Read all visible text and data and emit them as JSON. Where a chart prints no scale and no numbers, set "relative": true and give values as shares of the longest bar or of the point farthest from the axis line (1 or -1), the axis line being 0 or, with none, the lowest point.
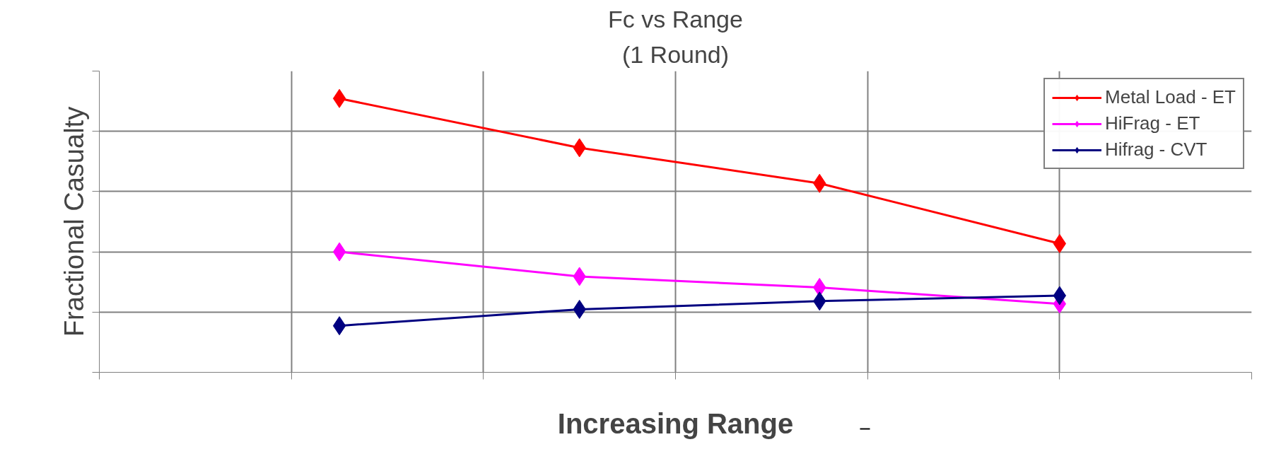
{
  "chart_data": {
    "type": "line",
    "title": "Fc vs Range",
    "subtitle": "(1 Round)",
    "xlabel": "Increasing Range",
    "ylabel": "Fractional Casualty",
    "relative": true,
    "categories": [
      null,
      null,
      null,
      null
    ],
    "series": [
      {
        "name": "Metal Load - ET",
        "color": "#ff0000",
        "values": [
          1,
          0.82,
          0.69,
          0.47
        ]
      },
      {
        "name": "HiFrag - ET",
        "color": "#ff00ff",
        "values": [
          0.44,
          0.35,
          0.31,
          0.25
        ]
      },
      {
        "name": "Hifrag - CVT",
        "color": "#000080",
        "values": [
          0.17,
          0.23,
          0.26,
          0.28
        ]
      }
    ],
    "marker": "diamond",
    "line_style": "solid",
    "grid": true,
    "legend": "top right"
  }
}
